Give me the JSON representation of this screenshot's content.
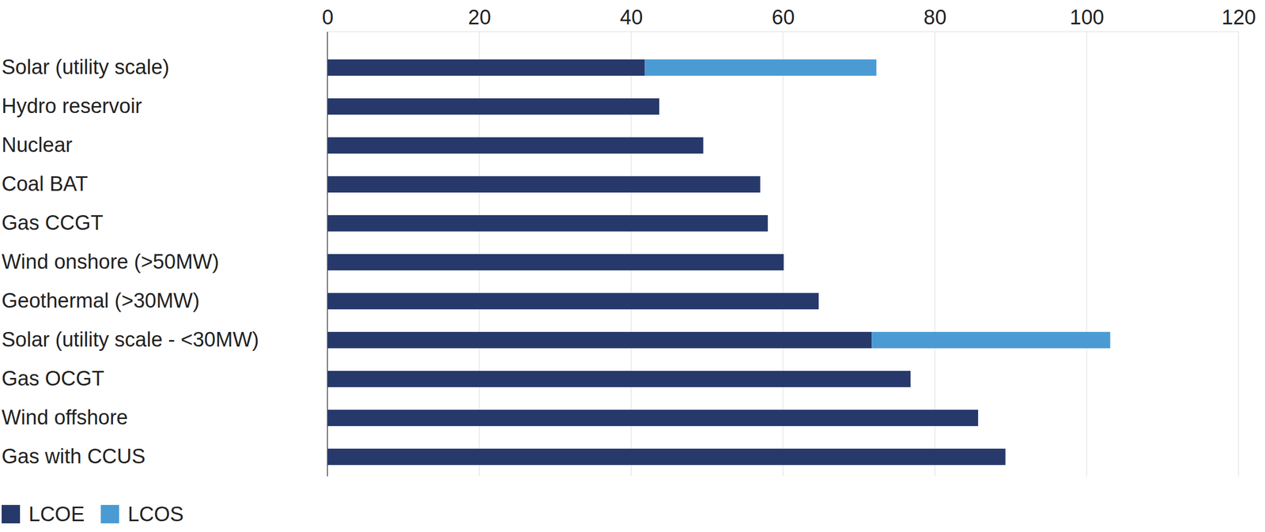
{
  "chart_data": {
    "type": "bar",
    "orientation": "horizontal",
    "stacked": true,
    "grid": true,
    "legend": "bottom-left",
    "categories": [
      "Solar (utility scale)",
      "Hydro reservoir",
      "Nuclear",
      "Coal BAT",
      "Gas CCGT",
      "Wind onshore (>50MW)",
      "Geothermal (>30MW)",
      "Solar (utility scale - <30MW)",
      "Gas OCGT",
      "Wind offshore",
      "Gas with CCUS"
    ],
    "series": [
      {
        "name": "LCOE",
        "color": "#27396b",
        "values": [
          41.8,
          43.7,
          49.5,
          57.0,
          58.0,
          60.1,
          64.7,
          71.7,
          76.8,
          85.7,
          89.3
        ]
      },
      {
        "name": "LCOS",
        "color": "#4a9bd4",
        "values": [
          30.5,
          null,
          null,
          null,
          null,
          null,
          null,
          31.4,
          null,
          null,
          null
        ]
      }
    ],
    "xlim": [
      0,
      120
    ],
    "xticks": [
      0,
      20,
      40,
      60,
      80,
      100,
      120
    ]
  }
}
